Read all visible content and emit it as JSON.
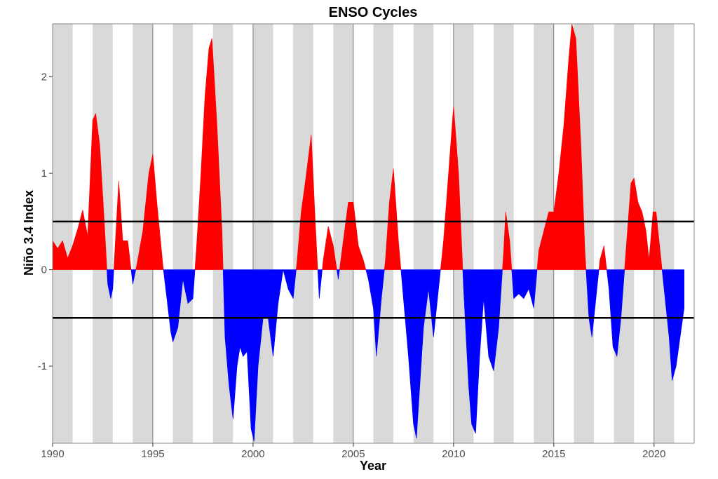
{
  "chart_data": {
    "type": "area",
    "title": "ENSO Cycles",
    "xlabel": "Year",
    "ylabel": "Niño 3.4 Index",
    "xlim": [
      1990,
      2022
    ],
    "ylim": [
      -1.8,
      2.55
    ],
    "x_ticks": [
      1990,
      1995,
      2000,
      2005,
      2010,
      2015,
      2020
    ],
    "x_tick_labels": [
      "1990",
      "1995",
      "2000",
      "2005",
      "2010",
      "2015",
      "2020"
    ],
    "y_ticks": [
      -1,
      0,
      1,
      2
    ],
    "y_tick_labels": [
      "-1",
      "0",
      "1",
      "2"
    ],
    "thresholds": [
      0.5,
      -0.5
    ],
    "shaded_years": [
      1990,
      1992,
      1994,
      1996,
      1998,
      2000,
      2002,
      2004,
      2006,
      2008,
      2010,
      2012,
      2014,
      2016,
      2018,
      2020
    ],
    "colors": {
      "positive": "#ff0000",
      "negative": "#0000ff",
      "shade": "#d9d9d9",
      "threshold": "#000000",
      "gridline": "#333333",
      "border": "#888888"
    },
    "series": [
      {
        "points": [
          [
            1990.0,
            0.3
          ],
          [
            1990.25,
            0.22
          ],
          [
            1990.5,
            0.3
          ],
          [
            1990.75,
            0.12
          ],
          [
            1991.0,
            0.25
          ],
          [
            1991.25,
            0.42
          ],
          [
            1991.5,
            0.62
          ],
          [
            1991.75,
            0.35
          ],
          [
            1992.0,
            1.55
          ],
          [
            1992.15,
            1.62
          ],
          [
            1992.35,
            1.3
          ],
          [
            1992.55,
            0.6
          ],
          [
            1992.75,
            -0.15
          ],
          [
            1992.9,
            -0.3
          ],
          [
            1993.0,
            -0.2
          ],
          [
            1993.3,
            0.92
          ],
          [
            1993.5,
            0.3
          ],
          [
            1993.75,
            0.3
          ],
          [
            1994.0,
            -0.15
          ],
          [
            1994.2,
            0.05
          ],
          [
            1994.5,
            0.4
          ],
          [
            1994.8,
            1.0
          ],
          [
            1995.0,
            1.2
          ],
          [
            1995.2,
            0.7
          ],
          [
            1995.5,
            0.05
          ],
          [
            1995.7,
            -0.3
          ],
          [
            1995.9,
            -0.65
          ],
          [
            1996.0,
            -0.75
          ],
          [
            1996.25,
            -0.6
          ],
          [
            1996.5,
            -0.1
          ],
          [
            1996.75,
            -0.35
          ],
          [
            1997.0,
            -0.3
          ],
          [
            1997.2,
            0.3
          ],
          [
            1997.4,
            1.0
          ],
          [
            1997.6,
            1.8
          ],
          [
            1997.8,
            2.3
          ],
          [
            1997.95,
            2.4
          ],
          [
            1998.2,
            1.5
          ],
          [
            1998.45,
            0.4
          ],
          [
            1998.6,
            -0.7
          ],
          [
            1998.8,
            -1.2
          ],
          [
            1999.0,
            -1.55
          ],
          [
            1999.2,
            -1.0
          ],
          [
            1999.35,
            -0.8
          ],
          [
            1999.5,
            -0.9
          ],
          [
            1999.7,
            -0.85
          ],
          [
            1999.9,
            -1.65
          ],
          [
            2000.05,
            -1.78
          ],
          [
            2000.25,
            -1.0
          ],
          [
            2000.5,
            -0.5
          ],
          [
            2000.75,
            -0.5
          ],
          [
            2001.0,
            -0.9
          ],
          [
            2001.25,
            -0.35
          ],
          [
            2001.5,
            0.0
          ],
          [
            2001.75,
            -0.2
          ],
          [
            2002.0,
            -0.3
          ],
          [
            2002.2,
            0.1
          ],
          [
            2002.4,
            0.6
          ],
          [
            2002.6,
            0.9
          ],
          [
            2002.9,
            1.4
          ],
          [
            2003.1,
            0.5
          ],
          [
            2003.3,
            -0.3
          ],
          [
            2003.5,
            0.1
          ],
          [
            2003.75,
            0.45
          ],
          [
            2004.0,
            0.25
          ],
          [
            2004.25,
            -0.1
          ],
          [
            2004.5,
            0.3
          ],
          [
            2004.75,
            0.7
          ],
          [
            2005.0,
            0.7
          ],
          [
            2005.25,
            0.25
          ],
          [
            2005.5,
            0.1
          ],
          [
            2005.75,
            -0.1
          ],
          [
            2006.0,
            -0.4
          ],
          [
            2006.15,
            -0.9
          ],
          [
            2006.4,
            -0.3
          ],
          [
            2006.6,
            0.1
          ],
          [
            2006.8,
            0.7
          ],
          [
            2007.0,
            1.05
          ],
          [
            2007.25,
            0.3
          ],
          [
            2007.5,
            -0.3
          ],
          [
            2007.75,
            -0.9
          ],
          [
            2008.0,
            -1.6
          ],
          [
            2008.15,
            -1.75
          ],
          [
            2008.5,
            -0.6
          ],
          [
            2008.75,
            -0.2
          ],
          [
            2009.0,
            -0.7
          ],
          [
            2009.25,
            -0.2
          ],
          [
            2009.5,
            0.3
          ],
          [
            2009.75,
            1.0
          ],
          [
            2010.0,
            1.7
          ],
          [
            2010.25,
            1.0
          ],
          [
            2010.5,
            -0.2
          ],
          [
            2010.75,
            -1.2
          ],
          [
            2010.9,
            -1.6
          ],
          [
            2011.1,
            -1.7
          ],
          [
            2011.3,
            -0.9
          ],
          [
            2011.5,
            -0.3
          ],
          [
            2011.75,
            -0.9
          ],
          [
            2012.0,
            -1.05
          ],
          [
            2012.25,
            -0.6
          ],
          [
            2012.5,
            0.2
          ],
          [
            2012.6,
            0.6
          ],
          [
            2012.8,
            0.3
          ],
          [
            2013.0,
            -0.3
          ],
          [
            2013.25,
            -0.25
          ],
          [
            2013.5,
            -0.3
          ],
          [
            2013.75,
            -0.2
          ],
          [
            2014.0,
            -0.4
          ],
          [
            2014.25,
            0.2
          ],
          [
            2014.5,
            0.4
          ],
          [
            2014.75,
            0.6
          ],
          [
            2015.0,
            0.6
          ],
          [
            2015.25,
            1.0
          ],
          [
            2015.5,
            1.5
          ],
          [
            2015.75,
            2.2
          ],
          [
            2015.9,
            2.55
          ],
          [
            2016.1,
            2.4
          ],
          [
            2016.35,
            1.3
          ],
          [
            2016.55,
            0.2
          ],
          [
            2016.75,
            -0.5
          ],
          [
            2016.9,
            -0.7
          ],
          [
            2017.1,
            -0.3
          ],
          [
            2017.3,
            0.1
          ],
          [
            2017.5,
            0.25
          ],
          [
            2017.75,
            -0.2
          ],
          [
            2017.95,
            -0.8
          ],
          [
            2018.15,
            -0.9
          ],
          [
            2018.35,
            -0.5
          ],
          [
            2018.6,
            0.2
          ],
          [
            2018.85,
            0.9
          ],
          [
            2019.0,
            0.95
          ],
          [
            2019.2,
            0.7
          ],
          [
            2019.4,
            0.6
          ],
          [
            2019.6,
            0.4
          ],
          [
            2019.75,
            0.1
          ],
          [
            2019.95,
            0.6
          ],
          [
            2020.1,
            0.6
          ],
          [
            2020.3,
            0.2
          ],
          [
            2020.5,
            -0.2
          ],
          [
            2020.75,
            -0.7
          ],
          [
            2020.9,
            -1.15
          ],
          [
            2021.1,
            -1.0
          ],
          [
            2021.3,
            -0.7
          ],
          [
            2021.5,
            -0.4
          ]
        ]
      }
    ]
  }
}
